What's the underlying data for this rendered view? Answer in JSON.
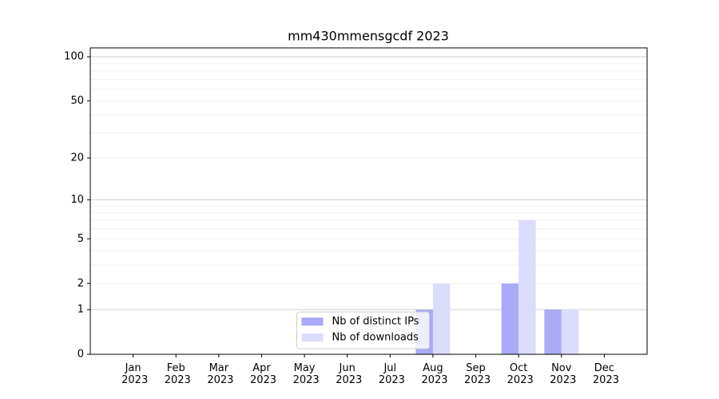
{
  "chart_data": {
    "type": "bar",
    "title": "mm430mmensgcdf 2023",
    "categories": [
      "Jan 2023",
      "Feb 2023",
      "Mar 2023",
      "Apr 2023",
      "May 2023",
      "Jun 2023",
      "Jul 2023",
      "Aug 2023",
      "Sep 2023",
      "Oct 2023",
      "Nov 2023",
      "Dec 2023"
    ],
    "series": [
      {
        "name": "Nb of distinct IPs",
        "color": "#aaaaf8",
        "values": [
          0,
          0,
          0,
          0,
          0,
          0,
          0,
          1,
          0,
          2,
          1,
          0
        ]
      },
      {
        "name": "Nb of downloads",
        "color": "#dcdcfc",
        "values": [
          0,
          0,
          0,
          0,
          0,
          0,
          0,
          2,
          0,
          7,
          1,
          0
        ]
      }
    ],
    "yscale": "log1p",
    "ylim": [
      0,
      115
    ],
    "yticks": [
      0,
      1,
      2,
      5,
      10,
      20,
      50,
      100
    ],
    "major_grid": [
      1,
      10,
      100
    ],
    "minor_grid": [
      2,
      3,
      4,
      5,
      6,
      7,
      8,
      9,
      20,
      30,
      40,
      50,
      60,
      70,
      80,
      90
    ],
    "grid": true,
    "legend": "lower center"
  }
}
